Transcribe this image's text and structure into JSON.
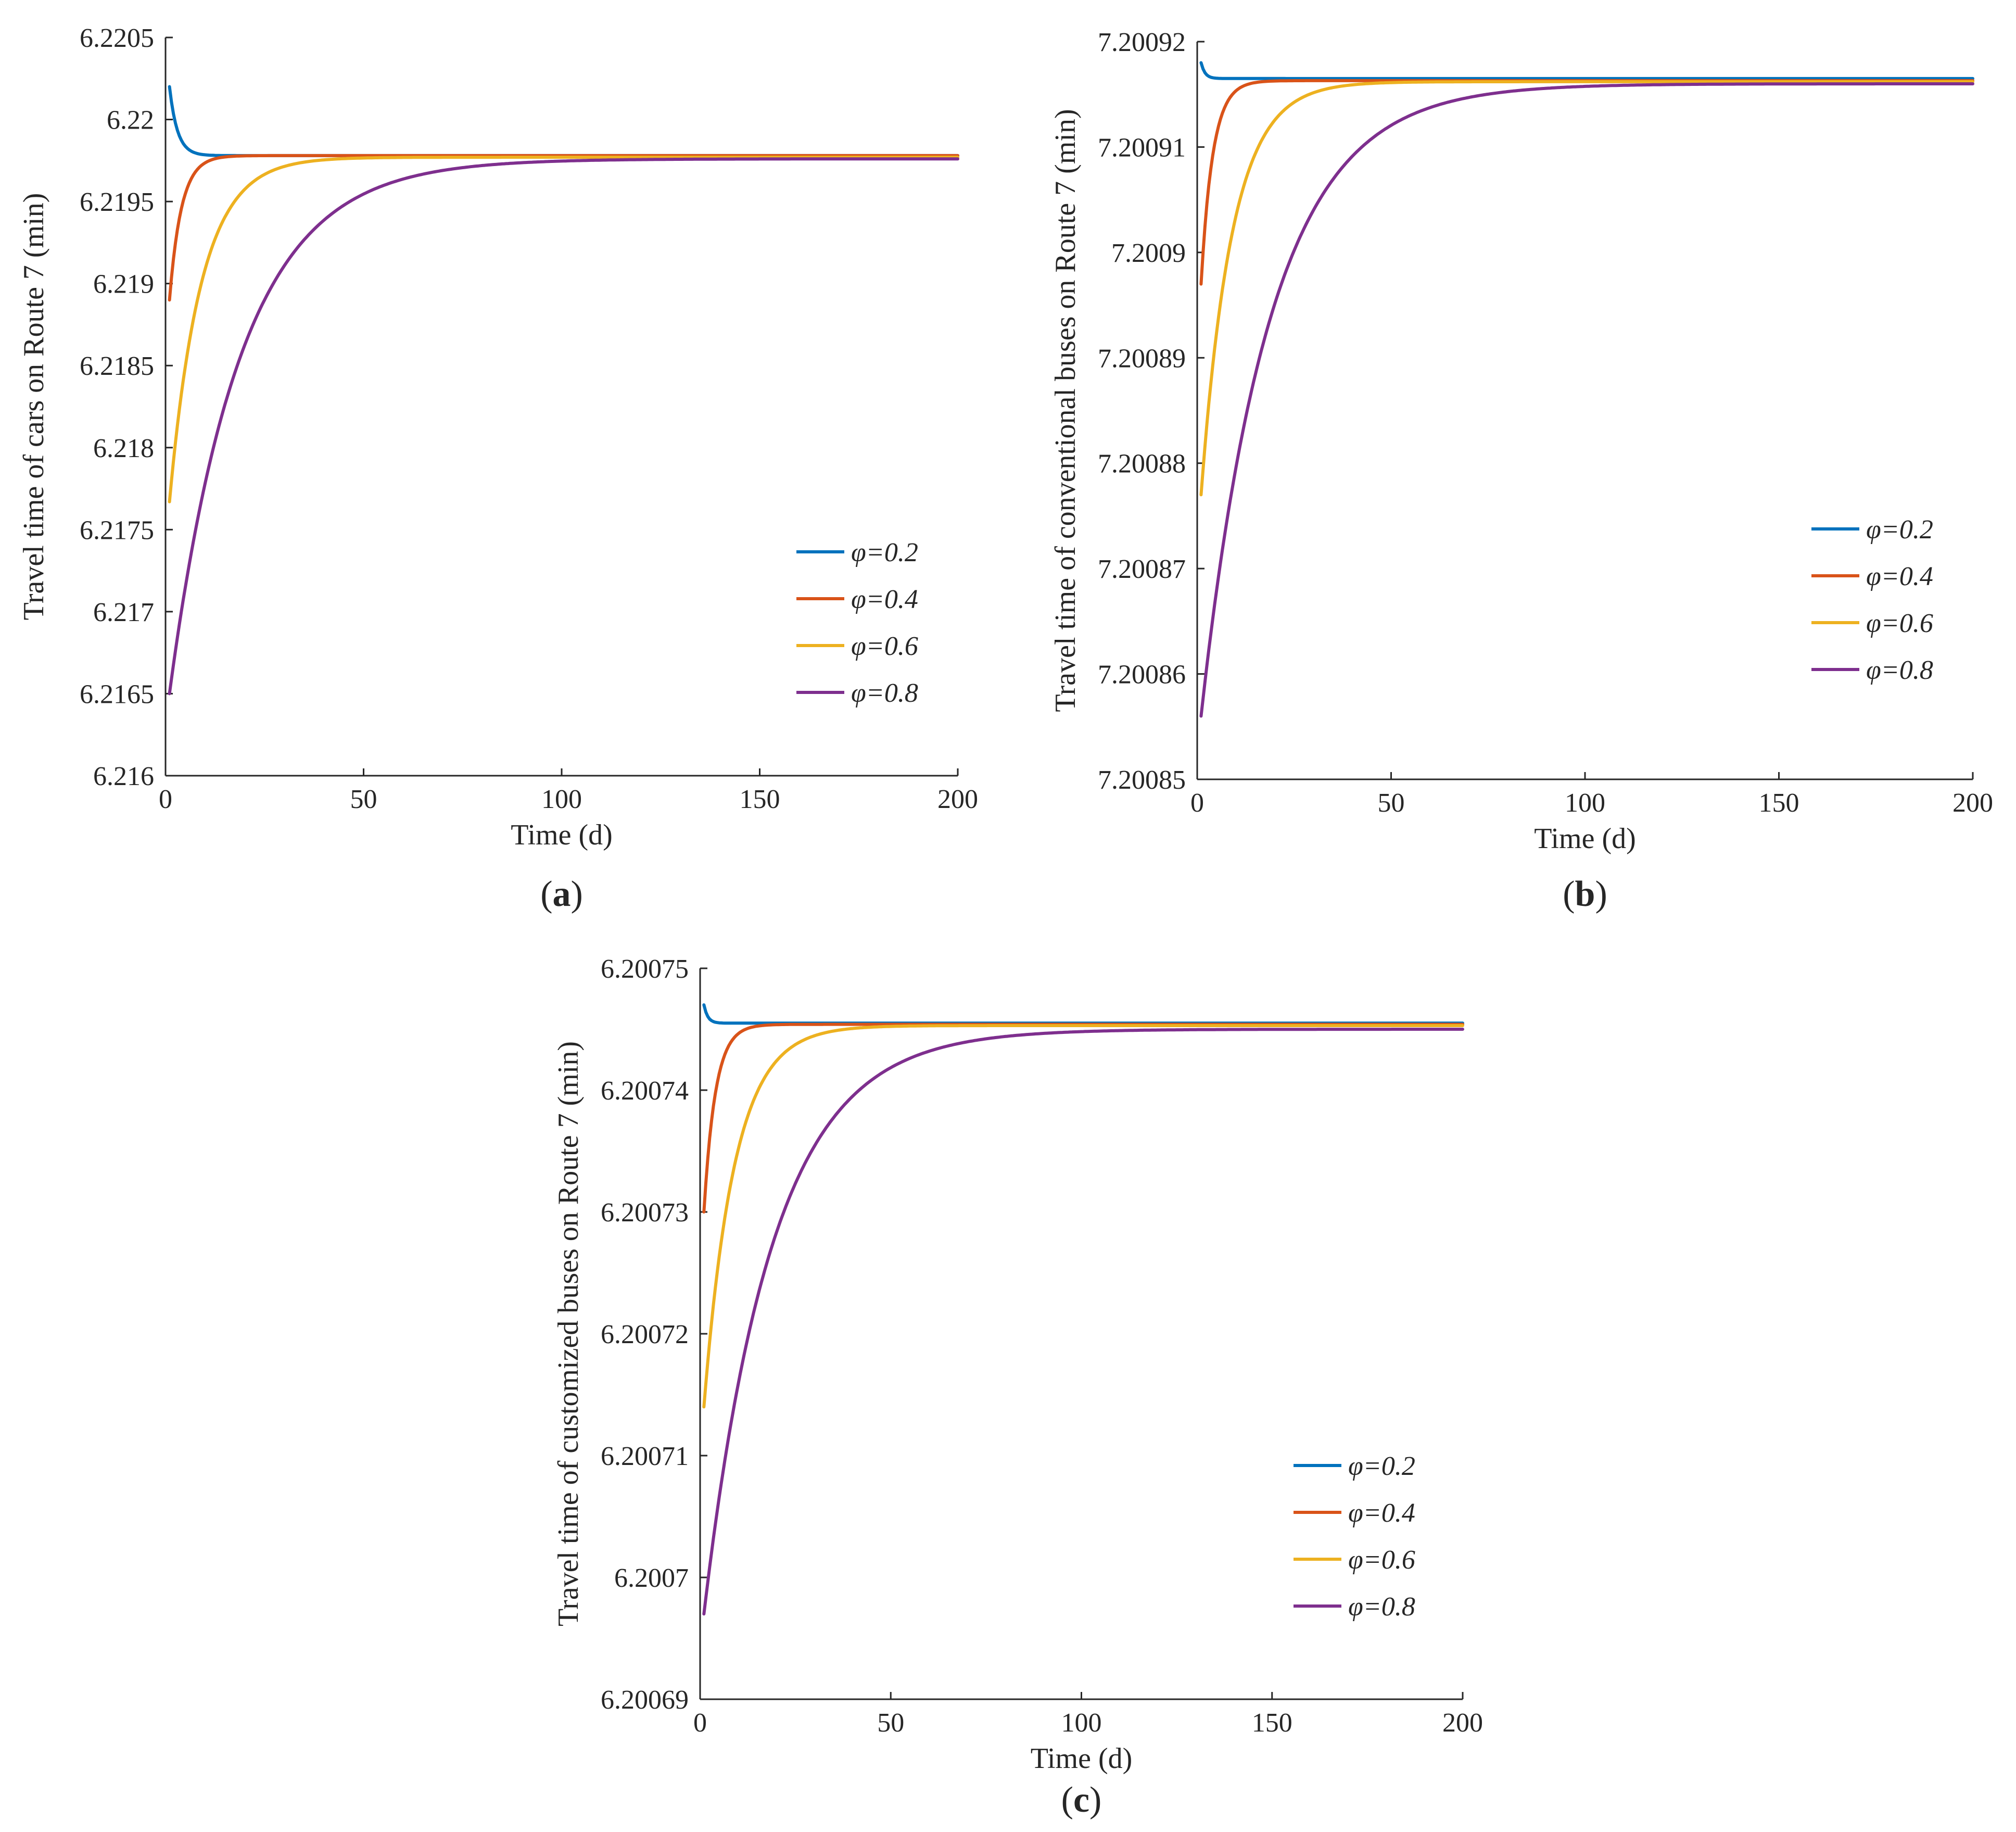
{
  "chart_data": [
    {
      "type": "line",
      "panel_label": "a",
      "xlabel": "Time (d)",
      "ylabel": "Travel time of cars on Route 7 (min)",
      "xlim": [
        0,
        200
      ],
      "ylim": [
        6.216,
        6.2205
      ],
      "x_ticks": [
        0,
        50,
        100,
        150,
        200
      ],
      "x_tick_labels": [
        "0",
        "50",
        "100",
        "150",
        "200"
      ],
      "y_ticks": [
        6.216,
        6.2165,
        6.217,
        6.2175,
        6.218,
        6.2185,
        6.219,
        6.2195,
        6.22,
        6.2205
      ],
      "y_tick_labels": [
        "6.216",
        "6.2165",
        "6.217",
        "6.2175",
        "6.218",
        "6.2185",
        "6.219",
        "6.2195",
        "6.22",
        "6.2205"
      ],
      "legend_position": "right-middle",
      "series": [
        {
          "name": "φ=0.2",
          "color": "#0072BD",
          "start": 6.2202,
          "end": 6.21978,
          "tau": 2
        },
        {
          "name": "φ=0.4",
          "color": "#D95319",
          "start": 6.2189,
          "end": 6.21978,
          "tau": 3
        },
        {
          "name": "φ=0.6",
          "color": "#EDB120",
          "start": 6.21767,
          "end": 6.21977,
          "tau": 8
        },
        {
          "name": "φ=0.8",
          "color": "#7E2F8E",
          "start": 6.2165,
          "end": 6.21976,
          "tau": 18
        }
      ]
    },
    {
      "type": "line",
      "panel_label": "b",
      "xlabel": "Time (d)",
      "ylabel": "Travel time of conventional buses on Route 7 (min)",
      "xlim": [
        0,
        200
      ],
      "ylim": [
        7.20085,
        7.20092
      ],
      "x_ticks": [
        0,
        50,
        100,
        150,
        200
      ],
      "x_tick_labels": [
        "0",
        "50",
        "100",
        "150",
        "200"
      ],
      "y_ticks": [
        7.20085,
        7.20086,
        7.20087,
        7.20088,
        7.20089,
        7.2009,
        7.20091,
        7.20092
      ],
      "y_tick_labels": [
        "7.20085",
        "7.20086",
        "7.20087",
        "7.20088",
        "7.20089",
        "7.2009",
        "7.20091",
        "7.20092"
      ],
      "legend_position": "right-middle",
      "series": [
        {
          "name": "φ=0.2",
          "color": "#0072BD",
          "start": 7.200918,
          "end": 7.2009165,
          "tau": 1
        },
        {
          "name": "φ=0.4",
          "color": "#D95319",
          "start": 7.200897,
          "end": 7.2009163,
          "tau": 3
        },
        {
          "name": "φ=0.6",
          "color": "#EDB120",
          "start": 7.200877,
          "end": 7.2009162,
          "tau": 8
        },
        {
          "name": "φ=0.8",
          "color": "#7E2F8E",
          "start": 7.200856,
          "end": 7.200916,
          "tau": 18
        }
      ]
    },
    {
      "type": "line",
      "panel_label": "c",
      "xlabel": "Time (d)",
      "ylabel": "Travel time of customized buses on Route 7 (min)",
      "xlim": [
        0,
        200
      ],
      "ylim": [
        6.20069,
        6.20075
      ],
      "x_ticks": [
        0,
        50,
        100,
        150,
        200
      ],
      "x_tick_labels": [
        "0",
        "50",
        "100",
        "150",
        "200"
      ],
      "y_ticks": [
        6.20069,
        6.2007,
        6.20071,
        6.20072,
        6.20073,
        6.20074,
        6.20075
      ],
      "y_tick_labels": [
        "6.20069",
        "6.2007",
        "6.20071",
        "6.20072",
        "6.20073",
        "6.20074",
        "6.20075"
      ],
      "legend_position": "right-middle",
      "series": [
        {
          "name": "φ=0.2",
          "color": "#0072BD",
          "start": 6.200747,
          "end": 6.2007455,
          "tau": 1
        },
        {
          "name": "φ=0.4",
          "color": "#D95319",
          "start": 6.20073,
          "end": 6.2007454,
          "tau": 3
        },
        {
          "name": "φ=0.6",
          "color": "#EDB120",
          "start": 6.200714,
          "end": 6.2007453,
          "tau": 8
        },
        {
          "name": "φ=0.8",
          "color": "#7E2F8E",
          "start": 6.200697,
          "end": 6.200745,
          "tau": 18
        }
      ]
    }
  ]
}
